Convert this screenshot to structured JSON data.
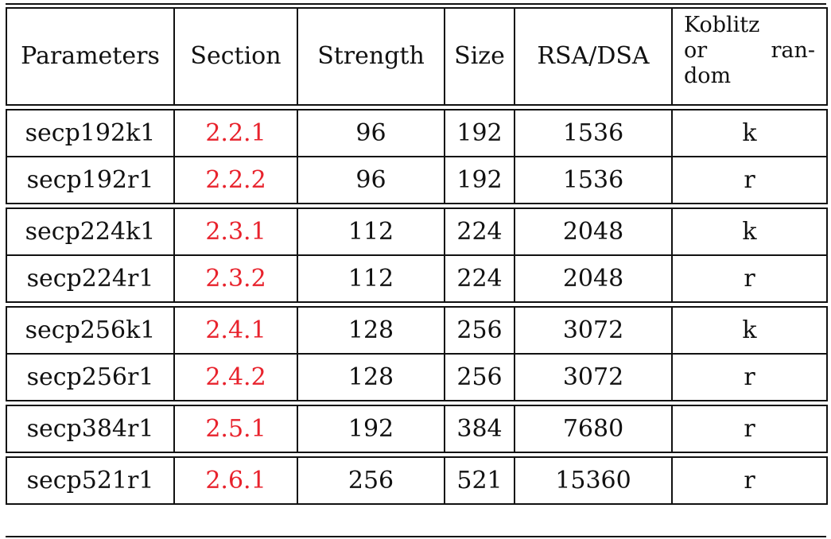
{
  "table": {
    "headers": {
      "parameters": "Parameters",
      "section": "Section",
      "strength": "Strength",
      "size": "Size",
      "rsa_dsa": "RSA/DSA",
      "koblitz_line1": "Koblitz",
      "koblitz_line2": "or ran-",
      "koblitz_line3": "dom"
    },
    "groups": [
      {
        "rows": [
          {
            "parameters": "secp192k1",
            "section": "2.2.1",
            "strength": "96",
            "size": "192",
            "rsa_dsa": "1536",
            "kr": "k"
          },
          {
            "parameters": "secp192r1",
            "section": "2.2.2",
            "strength": "96",
            "size": "192",
            "rsa_dsa": "1536",
            "kr": "r"
          }
        ]
      },
      {
        "rows": [
          {
            "parameters": "secp224k1",
            "section": "2.3.1",
            "strength": "112",
            "size": "224",
            "rsa_dsa": "2048",
            "kr": "k"
          },
          {
            "parameters": "secp224r1",
            "section": "2.3.2",
            "strength": "112",
            "size": "224",
            "rsa_dsa": "2048",
            "kr": "r"
          }
        ]
      },
      {
        "rows": [
          {
            "parameters": "secp256k1",
            "section": "2.4.1",
            "strength": "128",
            "size": "256",
            "rsa_dsa": "3072",
            "kr": "k"
          },
          {
            "parameters": "secp256r1",
            "section": "2.4.2",
            "strength": "128",
            "size": "256",
            "rsa_dsa": "3072",
            "kr": "r"
          }
        ]
      },
      {
        "rows": [
          {
            "parameters": "secp384r1",
            "section": "2.5.1",
            "strength": "192",
            "size": "384",
            "rsa_dsa": "7680",
            "kr": "r"
          }
        ]
      },
      {
        "rows": [
          {
            "parameters": "secp521r1",
            "section": "2.6.1",
            "strength": "256",
            "size": "521",
            "rsa_dsa": "15360",
            "kr": "r"
          }
        ]
      }
    ]
  },
  "colors": {
    "section_link": "#e8222c",
    "rule": "#111111"
  }
}
